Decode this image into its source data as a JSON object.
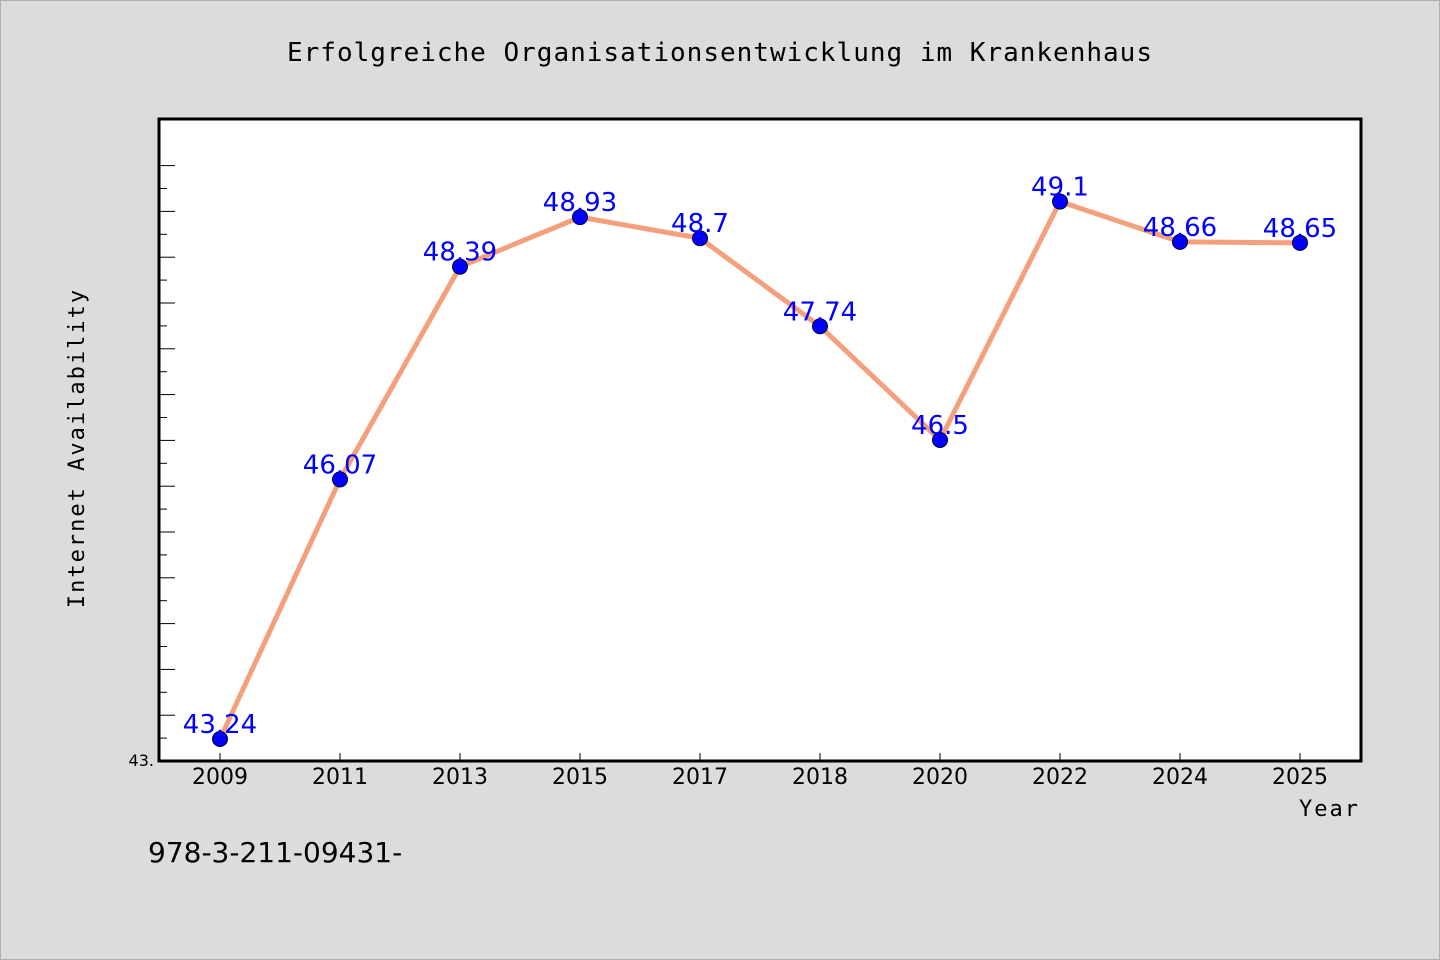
{
  "chart_data": {
    "type": "line",
    "title": "Erfolgreiche Organisationsentwicklung im Krankenhaus",
    "xlabel": "Year",
    "ylabel": "Internet Availability",
    "categories": [
      "2009",
      "2011",
      "2013",
      "2015",
      "2017",
      "2018",
      "2020",
      "2022",
      "2024",
      "2025"
    ],
    "series": [
      {
        "values": [
          43.24,
          46.07,
          48.39,
          48.93,
          48.7,
          47.74,
          46.5,
          49.1,
          48.66,
          48.65
        ],
        "data_labels": [
          "43.24",
          "46.07",
          "48.39",
          "48.93",
          "48.7",
          "47.74",
          "46.5",
          "49.1",
          "48.66",
          "48.65"
        ],
        "line_color": "#f4a07c",
        "marker_color": "#0000ff"
      }
    ],
    "y_tick_label": "43.",
    "ylim": [
      43.0,
      50.0
    ],
    "grid": false,
    "legend": "none"
  },
  "footnote": "978-3-211-09431-",
  "colors": {
    "background": "#dcdcdc",
    "plot_background": "#ffffff",
    "line": "#f4a07c",
    "marker": "#0000ff",
    "data_label": "#0000ff"
  }
}
